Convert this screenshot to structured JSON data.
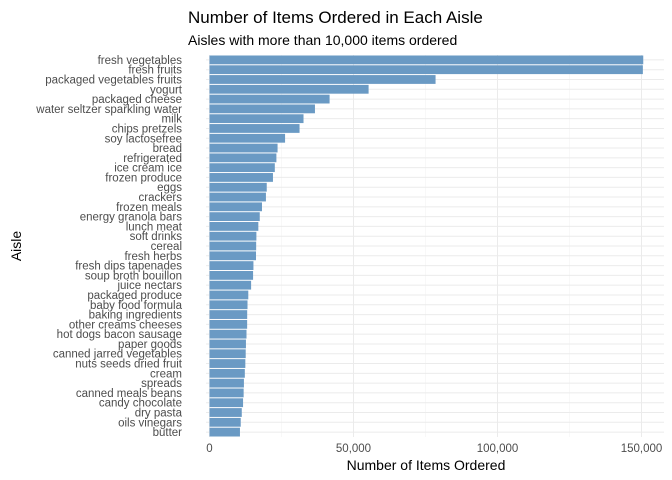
{
  "chart_data": {
    "type": "bar",
    "orientation": "horizontal",
    "title": "Number of Items Ordered in Each Aisle",
    "subtitle": "Aisles with more than 10,000 items ordered",
    "xlabel": "Number of Items Ordered",
    "ylabel": "Aisle",
    "xlim": [
      0,
      155000
    ],
    "xticks": [
      0,
      50000,
      100000,
      150000
    ],
    "xtick_labels": [
      "0",
      "50,000",
      "100,000",
      "150,000"
    ],
    "grid": true,
    "bar_color": "#6a9ac4",
    "categories": [
      "fresh vegetables",
      "fresh fruits",
      "packaged vegetables fruits",
      "yogurt",
      "packaged cheese",
      "water seltzer sparkling water",
      "milk",
      "chips pretzels",
      "soy lactosefree",
      "bread",
      "refrigerated",
      "ice cream ice",
      "frozen produce",
      "eggs",
      "crackers",
      "frozen meals",
      "energy granola bars",
      "lunch meat",
      "soft drinks",
      "cereal",
      "fresh herbs",
      "fresh dips tapenades",
      "soup broth bouillon",
      "juice nectars",
      "packaged produce",
      "baby food formula",
      "baking ingredients",
      "other creams cheeses",
      "hot dogs bacon sausage",
      "paper goods",
      "canned jarred vegetables",
      "nuts seeds dried fruit",
      "cream",
      "spreads",
      "canned meals beans",
      "candy chocolate",
      "dry pasta",
      "oils vinegars",
      "butter"
    ],
    "values": [
      150609,
      150473,
      78493,
      55240,
      41699,
      36617,
      32644,
      31269,
      26240,
      23635,
      23228,
      22676,
      22036,
      19875,
      19592,
      18221,
      17449,
      16957,
      16279,
      16201,
      16148,
      15256,
      15131,
      14447,
      13470,
      13198,
      13088,
      13070,
      12848,
      12652,
      12572,
      12443,
      12266,
      11948,
      11855,
      11653,
      11206,
      10845,
      10575
    ]
  }
}
